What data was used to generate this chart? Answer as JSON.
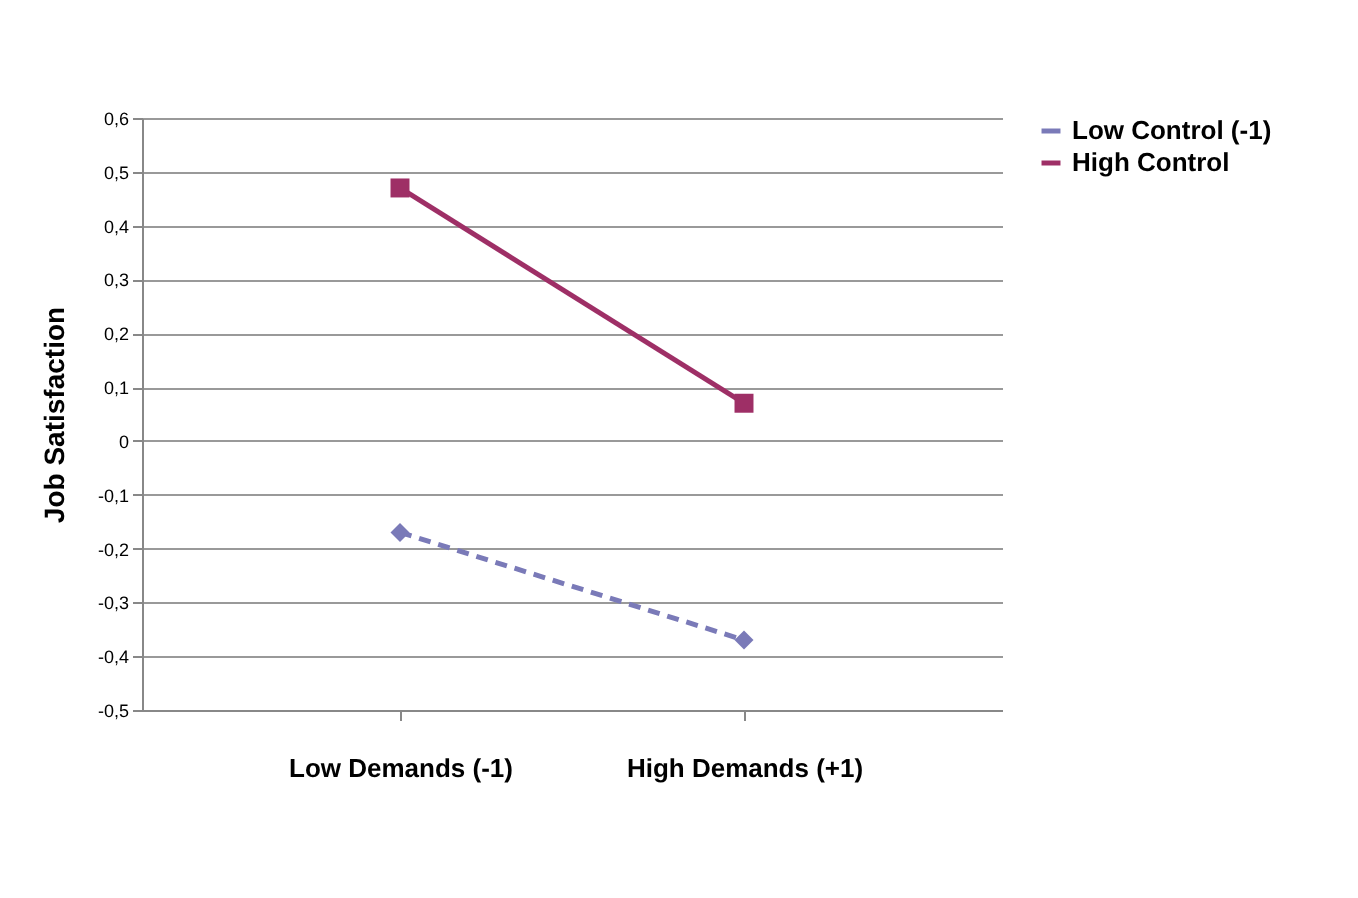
{
  "chart_data": {
    "type": "line",
    "ylabel": "Job Satisfaction",
    "categories": [
      "Low Demands (-1)",
      "High  Demands (+1)"
    ],
    "series": [
      {
        "name": "Low Control (-1)",
        "color": "#7a7ab8",
        "values": [
          -0.17,
          -0.37
        ],
        "marker": "diamond",
        "line_style": "dashed"
      },
      {
        "name": "High Control",
        "color": "#9e2f66",
        "values": [
          0.47,
          0.07
        ],
        "marker": "square",
        "line_style": "solid"
      }
    ],
    "ylim": [
      -0.5,
      0.6
    ],
    "yticks": [
      {
        "value": -0.5,
        "label": "-0,5"
      },
      {
        "value": -0.4,
        "label": "-0,4"
      },
      {
        "value": -0.3,
        "label": "-0,3"
      },
      {
        "value": -0.2,
        "label": "-0,2"
      },
      {
        "value": -0.1,
        "label": "-0,1"
      },
      {
        "value": 0,
        "label": "0"
      },
      {
        "value": 0.1,
        "label": "0,1"
      },
      {
        "value": 0.2,
        "label": "0,2"
      },
      {
        "value": 0.3,
        "label": "0,3"
      },
      {
        "value": 0.4,
        "label": "0,4"
      },
      {
        "value": 0.5,
        "label": "0,5"
      },
      {
        "value": 0.6,
        "label": "0,6"
      }
    ],
    "grid": "y",
    "legend": "top right"
  }
}
